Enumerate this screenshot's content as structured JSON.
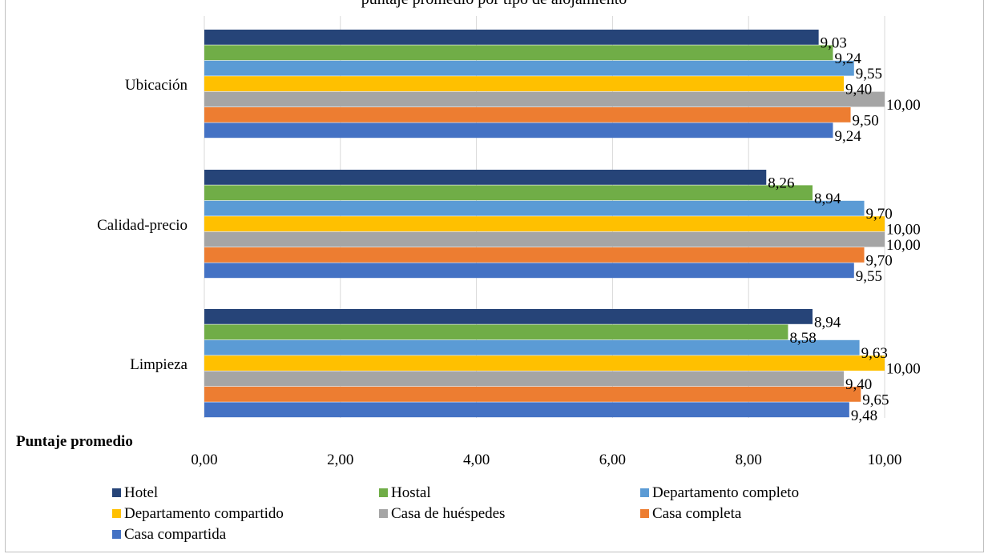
{
  "title": "puntaje promedio por tipo de alojamiento",
  "chart_data": {
    "type": "bar",
    "orientation": "horizontal",
    "xlabel": "Puntaje promedio",
    "xlim": [
      0,
      10
    ],
    "xticks": [
      "0,00",
      "2,00",
      "4,00",
      "6,00",
      "8,00",
      "10,00"
    ],
    "categories": [
      "Ubicación",
      "Calidad-precio",
      "Limpieza"
    ],
    "series": [
      {
        "name": "Hotel",
        "color": "#264478",
        "values": [
          9.03,
          8.26,
          8.94
        ],
        "labels": [
          "9,03",
          "8,26",
          "8,94"
        ]
      },
      {
        "name": "Hostal",
        "color": "#70AD47",
        "values": [
          9.24,
          8.94,
          8.58
        ],
        "labels": [
          "9,24",
          "8,94",
          "8,58"
        ]
      },
      {
        "name": "Departamento completo",
        "color": "#5B9BD5",
        "values": [
          9.55,
          9.7,
          9.63
        ],
        "labels": [
          "9,55",
          "9,70",
          "9,63"
        ]
      },
      {
        "name": "Departamento compartido",
        "color": "#FFC000",
        "values": [
          9.4,
          10.0,
          10.0
        ],
        "labels": [
          "9,40",
          "10,00",
          "10,00"
        ]
      },
      {
        "name": "Casa de huéspedes",
        "color": "#A5A5A5",
        "values": [
          10.0,
          10.0,
          9.4
        ],
        "labels": [
          "10,00",
          "10,00",
          "9,40"
        ]
      },
      {
        "name": "Casa completa",
        "color": "#ED7D31",
        "values": [
          9.5,
          9.7,
          9.65
        ],
        "labels": [
          "9,50",
          "9,70",
          "9,65"
        ]
      },
      {
        "name": "Casa compartida",
        "color": "#4472C4",
        "values": [
          9.24,
          9.55,
          9.48
        ],
        "labels": [
          "9,24",
          "9,55",
          "9,48"
        ]
      }
    ],
    "grid": true,
    "legend": "bottom"
  }
}
